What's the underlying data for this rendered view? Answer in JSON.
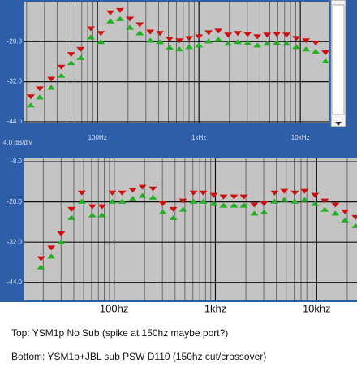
{
  "chart_data": [
    {
      "type": "scatter",
      "xscale": "log",
      "x": [
        22,
        27,
        35,
        44,
        55,
        68,
        86,
        108,
        134,
        167,
        209,
        261,
        331,
        413,
        515,
        643,
        802,
        1000,
        1247,
        1556,
        1941,
        2421,
        3020,
        3767,
        4699,
        5861,
        7311,
        9120,
        11376,
        14191,
        17701
      ],
      "series": [
        {
          "color": "#cc1010",
          "values": [
            -38,
            -35.6,
            -32.7,
            -29.1,
            -25.3,
            -23.8,
            -17.6,
            -19,
            -12.8,
            -12.1,
            -14.7,
            -16.4,
            -18.6,
            -19,
            -20.7,
            -21.2,
            -20.5,
            -20,
            -18.8,
            -18.3,
            -19.5,
            -19,
            -19.3,
            -20,
            -19.5,
            -19.3,
            -19.5,
            -20.5,
            -21.2,
            -21.9,
            -24.8
          ]
        }
      ],
      "lower_marker_color": "#20b020",
      "xlim": [
        19,
        19000
      ],
      "ylim": [
        -44.5,
        -8
      ],
      "xticks": [
        {
          "value": 100,
          "label": "100Hz"
        },
        {
          "value": 1000,
          "label": "1kHz"
        },
        {
          "value": 10000,
          "label": "10kHz"
        }
      ],
      "xgrid": [
        20,
        30,
        40,
        50,
        60,
        70,
        80,
        90,
        200,
        300,
        400,
        500,
        600,
        700,
        800,
        900,
        2000,
        3000,
        4000,
        5000,
        6000,
        7000,
        8000,
        9000
      ],
      "yticks": [
        {
          "value": -20,
          "label": "-20.0"
        },
        {
          "value": -32,
          "label": "-32.0"
        },
        {
          "value": -44,
          "label": "-44.0"
        }
      ],
      "annotation": "4.0 dB/div"
    },
    {
      "type": "scatter",
      "xscale": "log",
      "x": [
        19,
        24,
        30,
        38,
        48,
        61,
        76,
        96,
        120,
        153,
        191,
        242,
        302,
        384,
        479,
        608,
        759,
        964,
        1202,
        1528,
        1905,
        2421,
        3020,
        3837,
        4786,
        6081,
        7586,
        9638,
        12023,
        15276,
        19055,
        24210
      ],
      "series": [
        {
          "color": "#cc1010",
          "values": [
            -38.4,
            -35.2,
            -31,
            -23.7,
            -18.8,
            -22.9,
            -22.9,
            -18.8,
            -18.8,
            -18,
            -17.1,
            -17.6,
            -22,
            -23.7,
            -21.2,
            -18.8,
            -18.8,
            -19.5,
            -20,
            -20,
            -20,
            -22.4,
            -22,
            -18.8,
            -18.3,
            -18.8,
            -18.3,
            -19.5,
            -21.2,
            -22.4,
            -24.4,
            -26.1
          ]
        }
      ],
      "lower_marker_color": "#20b020",
      "xlim": [
        13,
        25000
      ],
      "ylim": [
        -49.4,
        -7
      ],
      "xticks": [
        {
          "value": 100,
          "label": "100hz"
        },
        {
          "value": 1000,
          "label": "1khz"
        },
        {
          "value": 10000,
          "label": "10khz"
        }
      ],
      "xgrid": [
        20,
        30,
        40,
        50,
        60,
        70,
        80,
        90,
        200,
        300,
        400,
        500,
        600,
        700,
        800,
        900,
        2000,
        3000,
        4000,
        5000,
        6000,
        7000,
        8000,
        9000,
        20000
      ],
      "yticks": [
        {
          "value": -8,
          "label": "-8.0"
        },
        {
          "value": -20,
          "label": "-20.0"
        },
        {
          "value": -32,
          "label": "-32.0"
        },
        {
          "value": -44,
          "label": "-44.0"
        }
      ]
    }
  ],
  "captions": [
    "Top: YSM1p No Sub (spike at 150hz maybe port?)",
    "Bottom: YSM1p+JBL sub PSW D110 (150hz cut/crossover)"
  ]
}
